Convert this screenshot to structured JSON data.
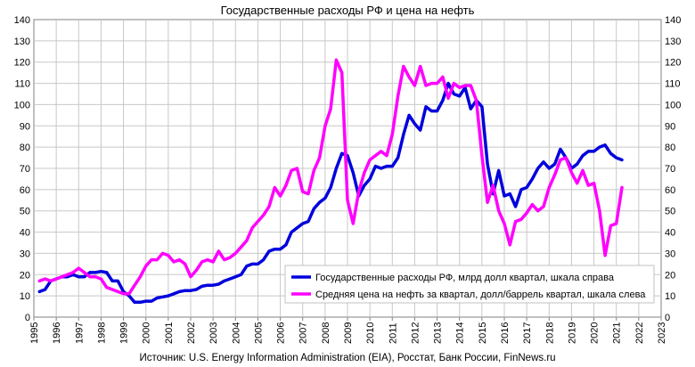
{
  "chart_data": {
    "type": "line",
    "title": "Государственные расходы РФ и цена на нефть",
    "source": "Источник: U.S. Energy Information Administration (EIA), Росстат, Банк России, FinNews.ru",
    "x_ticks": [
      "1995",
      "1996",
      "1997",
      "1998",
      "1999",
      "2000",
      "2001",
      "2002",
      "2003",
      "2004",
      "2005",
      "2006",
      "2007",
      "2008",
      "2009",
      "2010",
      "2011",
      "2012",
      "2013",
      "2014",
      "2015",
      "2016",
      "2017",
      "2018",
      "2019",
      "2020",
      "2021",
      "2022",
      "2023"
    ],
    "y_left_ticks": [
      "0",
      "10",
      "20",
      "30",
      "40",
      "50",
      "60",
      "70",
      "80",
      "90",
      "100",
      "110",
      "120",
      "130",
      "140"
    ],
    "y_right_ticks": [
      "0",
      "10",
      "20",
      "30",
      "40",
      "50",
      "60",
      "70",
      "80",
      "90",
      "100",
      "110",
      "120",
      "130",
      "140"
    ],
    "y_left_range": [
      0,
      140
    ],
    "y_right_range": [
      0,
      140
    ],
    "x_range": [
      1995,
      2023
    ],
    "grid": true,
    "legend_position": "bottom-right",
    "series": [
      {
        "name": "Государственные расходы РФ, млрд долл квартал, шкала справа",
        "color": "#0000dd",
        "axis": "right",
        "points": [
          [
            1995.25,
            12
          ],
          [
            1995.5,
            13
          ],
          [
            1995.75,
            17
          ],
          [
            1996.0,
            18
          ],
          [
            1996.25,
            19
          ],
          [
            1996.5,
            19
          ],
          [
            1996.75,
            20
          ],
          [
            1997.0,
            19
          ],
          [
            1997.25,
            19
          ],
          [
            1997.5,
            21
          ],
          [
            1997.75,
            21
          ],
          [
            1998.0,
            21.5
          ],
          [
            1998.25,
            21
          ],
          [
            1998.5,
            17
          ],
          [
            1998.75,
            17
          ],
          [
            1999.0,
            12
          ],
          [
            1999.25,
            10
          ],
          [
            1999.5,
            7
          ],
          [
            1999.75,
            7
          ],
          [
            2000.0,
            7.5
          ],
          [
            2000.25,
            7.5
          ],
          [
            2000.5,
            9
          ],
          [
            2000.75,
            9.5
          ],
          [
            2001.0,
            10
          ],
          [
            2001.25,
            11
          ],
          [
            2001.5,
            12
          ],
          [
            2001.75,
            12.5
          ],
          [
            2002.0,
            12.5
          ],
          [
            2002.25,
            13
          ],
          [
            2002.5,
            14.5
          ],
          [
            2002.75,
            15
          ],
          [
            2003.0,
            15
          ],
          [
            2003.25,
            15.5
          ],
          [
            2003.5,
            17
          ],
          [
            2003.75,
            18
          ],
          [
            2004.0,
            19
          ],
          [
            2004.25,
            20
          ],
          [
            2004.5,
            24
          ],
          [
            2004.75,
            25
          ],
          [
            2005.0,
            25
          ],
          [
            2005.25,
            27
          ],
          [
            2005.5,
            31
          ],
          [
            2005.75,
            32
          ],
          [
            2006.0,
            32
          ],
          [
            2006.25,
            34
          ],
          [
            2006.5,
            40
          ],
          [
            2006.75,
            42
          ],
          [
            2007.0,
            44
          ],
          [
            2007.25,
            45
          ],
          [
            2007.5,
            51
          ],
          [
            2007.75,
            54
          ],
          [
            2008.0,
            56
          ],
          [
            2008.25,
            61
          ],
          [
            2008.5,
            70
          ],
          [
            2008.75,
            77
          ],
          [
            2009.0,
            76
          ],
          [
            2009.25,
            68
          ],
          [
            2009.5,
            57
          ],
          [
            2009.75,
            62
          ],
          [
            2010.0,
            65
          ],
          [
            2010.25,
            71
          ],
          [
            2010.5,
            70
          ],
          [
            2010.75,
            71
          ],
          [
            2011.0,
            71
          ],
          [
            2011.25,
            75
          ],
          [
            2011.5,
            86
          ],
          [
            2011.75,
            95
          ],
          [
            2012.0,
            91
          ],
          [
            2012.25,
            88
          ],
          [
            2012.5,
            99
          ],
          [
            2012.75,
            97
          ],
          [
            2013.0,
            97
          ],
          [
            2013.25,
            102
          ],
          [
            2013.5,
            110
          ],
          [
            2013.75,
            105
          ],
          [
            2014.0,
            104
          ],
          [
            2014.25,
            108
          ],
          [
            2014.5,
            98
          ],
          [
            2014.75,
            102
          ],
          [
            2015.0,
            99
          ],
          [
            2015.25,
            72
          ],
          [
            2015.5,
            58
          ],
          [
            2015.75,
            69
          ],
          [
            2016.0,
            57
          ],
          [
            2016.25,
            58
          ],
          [
            2016.5,
            52
          ],
          [
            2016.75,
            60
          ],
          [
            2017.0,
            61
          ],
          [
            2017.25,
            65
          ],
          [
            2017.5,
            70
          ],
          [
            2017.75,
            73
          ],
          [
            2018.0,
            70
          ],
          [
            2018.25,
            72
          ],
          [
            2018.5,
            79
          ],
          [
            2018.75,
            75
          ],
          [
            2019.0,
            70
          ],
          [
            2019.25,
            72
          ],
          [
            2019.5,
            76
          ],
          [
            2019.75,
            78
          ],
          [
            2020.0,
            78
          ],
          [
            2020.25,
            80
          ],
          [
            2020.5,
            81
          ],
          [
            2020.75,
            77
          ],
          [
            2021.0,
            75
          ],
          [
            2021.25,
            74
          ]
        ]
      },
      {
        "name": "Средняя цена на  нефть за квартал, долл/баррель квартал, шкала слева",
        "color": "#ff00ff",
        "axis": "left",
        "points": [
          [
            1995.25,
            17
          ],
          [
            1995.5,
            18
          ],
          [
            1995.75,
            17
          ],
          [
            1996.0,
            18
          ],
          [
            1996.25,
            19
          ],
          [
            1996.5,
            20
          ],
          [
            1996.75,
            21
          ],
          [
            1997.0,
            23
          ],
          [
            1997.25,
            21
          ],
          [
            1997.5,
            19
          ],
          [
            1997.75,
            19
          ],
          [
            1998.0,
            18
          ],
          [
            1998.25,
            14
          ],
          [
            1998.5,
            13
          ],
          [
            1998.75,
            12
          ],
          [
            1999.0,
            11
          ],
          [
            1999.25,
            11
          ],
          [
            1999.5,
            15
          ],
          [
            1999.75,
            19
          ],
          [
            2000.0,
            24
          ],
          [
            2000.25,
            27
          ],
          [
            2000.5,
            27
          ],
          [
            2000.75,
            30
          ],
          [
            2001.0,
            29
          ],
          [
            2001.25,
            26
          ],
          [
            2001.5,
            27
          ],
          [
            2001.75,
            25
          ],
          [
            2002.0,
            19
          ],
          [
            2002.25,
            22
          ],
          [
            2002.5,
            26
          ],
          [
            2002.75,
            27
          ],
          [
            2003.0,
            26
          ],
          [
            2003.25,
            31
          ],
          [
            2003.5,
            27
          ],
          [
            2003.75,
            28
          ],
          [
            2004.0,
            30
          ],
          [
            2004.25,
            33
          ],
          [
            2004.5,
            36
          ],
          [
            2004.75,
            42
          ],
          [
            2005.0,
            45
          ],
          [
            2005.25,
            48
          ],
          [
            2005.5,
            52
          ],
          [
            2005.75,
            61
          ],
          [
            2006.0,
            57
          ],
          [
            2006.25,
            62
          ],
          [
            2006.5,
            69
          ],
          [
            2006.75,
            70
          ],
          [
            2007.0,
            59
          ],
          [
            2007.25,
            58
          ],
          [
            2007.5,
            69
          ],
          [
            2007.75,
            75
          ],
          [
            2008.0,
            90
          ],
          [
            2008.25,
            98
          ],
          [
            2008.5,
            121
          ],
          [
            2008.75,
            115
          ],
          [
            2009.0,
            55
          ],
          [
            2009.25,
            44
          ],
          [
            2009.5,
            59
          ],
          [
            2009.75,
            68
          ],
          [
            2010.0,
            74
          ],
          [
            2010.25,
            76
          ],
          [
            2010.5,
            78
          ],
          [
            2010.75,
            76
          ],
          [
            2011.0,
            86
          ],
          [
            2011.25,
            104
          ],
          [
            2011.5,
            118
          ],
          [
            2011.75,
            113
          ],
          [
            2012.0,
            109
          ],
          [
            2012.25,
            118
          ],
          [
            2012.5,
            109
          ],
          [
            2012.75,
            110
          ],
          [
            2013.0,
            110
          ],
          [
            2013.25,
            113
          ],
          [
            2013.5,
            103
          ],
          [
            2013.75,
            110
          ],
          [
            2014.0,
            108
          ],
          [
            2014.25,
            109
          ],
          [
            2014.5,
            109
          ],
          [
            2014.75,
            102
          ],
          [
            2015.0,
            76
          ],
          [
            2015.25,
            54
          ],
          [
            2015.5,
            62
          ],
          [
            2015.75,
            50
          ],
          [
            2016.0,
            44
          ],
          [
            2016.25,
            34
          ],
          [
            2016.5,
            45
          ],
          [
            2016.75,
            46
          ],
          [
            2017.0,
            49
          ],
          [
            2017.25,
            53
          ],
          [
            2017.5,
            50
          ],
          [
            2017.75,
            52
          ],
          [
            2018.0,
            61
          ],
          [
            2018.25,
            67
          ],
          [
            2018.5,
            74
          ],
          [
            2018.75,
            75
          ],
          [
            2019.0,
            68
          ],
          [
            2019.25,
            63
          ],
          [
            2019.5,
            69
          ],
          [
            2019.75,
            62
          ],
          [
            2020.0,
            63
          ],
          [
            2020.25,
            50
          ],
          [
            2020.5,
            29
          ],
          [
            2020.75,
            43
          ],
          [
            2021.0,
            44
          ],
          [
            2021.25,
            61
          ]
        ]
      }
    ]
  }
}
